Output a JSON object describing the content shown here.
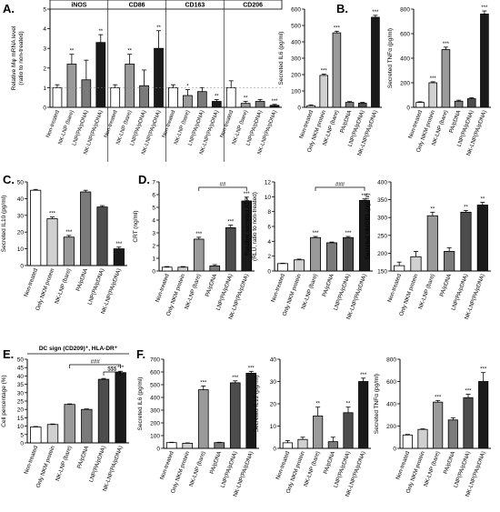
{
  "panel_letters": [
    "A.",
    "B.",
    "C.",
    "D.",
    "E.",
    "F."
  ],
  "palette": {
    "white": "#ffffff",
    "light": "#d0d0d0",
    "mid": "#9a9a9a",
    "gray": "#7a7a7a",
    "dark": "#4d4d4d",
    "black": "#1a1a1a"
  },
  "chart_data": [
    {
      "id": "A",
      "type": "bar",
      "ylabel": "Relative Mφ mRNA level\n(ratio to non-treated)",
      "ylim": [
        0,
        5
      ],
      "yticks": [
        0,
        1,
        2,
        3,
        4,
        5
      ],
      "groups": [
        "iNOS",
        "CD86",
        "CD163",
        "CD206"
      ],
      "categories": [
        "Non-treated",
        "NK-LNP (bare)",
        "LNP(PA/pDNA)",
        "NK-LNP(PA/pDNA)"
      ],
      "colors": [
        "white",
        "mid",
        "gray",
        "black"
      ],
      "values": [
        [
          1.0,
          2.2,
          1.4,
          3.3
        ],
        [
          1.0,
          2.2,
          1.1,
          3.0
        ],
        [
          1.0,
          0.6,
          0.8,
          0.3
        ],
        [
          1.0,
          0.2,
          0.3,
          0.1
        ]
      ],
      "errors": [
        [
          0.15,
          0.5,
          1.0,
          0.4
        ],
        [
          0.15,
          0.5,
          0.8,
          0.9
        ],
        [
          0.15,
          0.3,
          0.2,
          0.1
        ],
        [
          0.35,
          0.1,
          0.1,
          0.05
        ]
      ],
      "sig": [
        [
          "",
          "**",
          "",
          "**"
        ],
        [
          "",
          "**",
          "",
          "**"
        ],
        [
          "",
          "*",
          "",
          "**"
        ],
        [
          "",
          "**",
          "",
          "***"
        ]
      ]
    },
    {
      "id": "B1",
      "type": "bar",
      "ylabel": "Secreted IL6 (pg/ml)",
      "ylim": [
        0,
        600
      ],
      "yticks": [
        0,
        100,
        200,
        300,
        400,
        500,
        600
      ],
      "categories": [
        "Non-treated",
        "Only NKM protein",
        "NK-LNP (bare)",
        "PA/pDNA",
        "LNP(PA/pDNA)",
        "NK-LNP(PA/pDNA)"
      ],
      "colors": [
        "white",
        "light",
        "mid",
        "gray",
        "dark",
        "black"
      ],
      "values": [
        10,
        195,
        455,
        30,
        25,
        550
      ],
      "errors": [
        5,
        8,
        10,
        5,
        5,
        12
      ],
      "sig": [
        "",
        "***",
        "***",
        "",
        "",
        "***"
      ]
    },
    {
      "id": "B2",
      "type": "bar",
      "ylabel": "Secreted TNFα (pg/ml)",
      "ylim": [
        0,
        800
      ],
      "yticks": [
        0,
        200,
        400,
        600,
        800
      ],
      "categories": [
        "Non-treated",
        "Only NKM protein",
        "NK-LNP (bare)",
        "PA/pDNA",
        "LNP(PA/pDNA)",
        "NK-LNP(PA/pDNA)"
      ],
      "colors": [
        "white",
        "light",
        "mid",
        "gray",
        "dark",
        "black"
      ],
      "values": [
        40,
        200,
        470,
        50,
        70,
        760
      ],
      "errors": [
        5,
        8,
        20,
        8,
        8,
        25
      ],
      "sig": [
        "",
        "***",
        "***",
        "",
        "",
        "***"
      ]
    },
    {
      "id": "C",
      "type": "bar",
      "ylabel": "Secreted IL10 (pg/ml)",
      "ylim": [
        0,
        50
      ],
      "yticks": [
        0,
        10,
        20,
        30,
        40,
        50
      ],
      "categories": [
        "Non-treated",
        "Only NKM protein",
        "NK-LNP (bare)",
        "PA/pDNA",
        "LNP(PA/pDNA)",
        "NK-LNP(PA/pDNA)"
      ],
      "colors": [
        "white",
        "light",
        "mid",
        "gray",
        "dark",
        "black"
      ],
      "values": [
        45,
        28,
        17,
        44,
        35,
        10
      ],
      "errors": [
        0.5,
        1.0,
        1.0,
        1.0,
        0.8,
        1.0
      ],
      "sig": [
        "",
        "***",
        "***",
        "",
        "",
        "***"
      ]
    },
    {
      "id": "D1",
      "type": "bar",
      "ylabel": "CRT (ng/ml)",
      "ylim": [
        0,
        7
      ],
      "yticks": [
        0,
        1,
        2,
        3,
        4,
        5,
        6,
        7
      ],
      "categories": [
        "Non-treated",
        "Only NKM protein",
        "NK-LNP (bare)",
        "PA/pDNA",
        "LNP(PA/pDNA)",
        "NK-LNP(PA/pDNA)"
      ],
      "colors": [
        "white",
        "light",
        "mid",
        "gray",
        "dark",
        "black"
      ],
      "values": [
        0.3,
        0.3,
        2.5,
        0.4,
        3.4,
        5.5
      ],
      "errors": [
        0.05,
        0.05,
        0.15,
        0.1,
        0.2,
        0.3
      ],
      "sig": [
        "",
        "",
        "***",
        "",
        "***",
        "***"
      ],
      "bracket": {
        "from": 2,
        "to": 5,
        "label": "##"
      }
    },
    {
      "id": "D2",
      "type": "bar",
      "ylabel": "Relative secreted ATP\n(RLU, ratio to non-treated)",
      "ylim": [
        0,
        12
      ],
      "yticks": [
        0,
        2,
        4,
        6,
        8,
        10,
        12
      ],
      "categories": [
        "Non-treated",
        "Only NKM protein",
        "NK-LNP (bare)",
        "PA/pDNA",
        "LNP(PA/pDNA)",
        "NK-LNP(PA/pDNA)"
      ],
      "colors": [
        "white",
        "light",
        "mid",
        "gray",
        "dark",
        "black"
      ],
      "values": [
        1.0,
        1.5,
        4.5,
        3.8,
        4.5,
        9.5
      ],
      "errors": [
        0.05,
        0.1,
        0.15,
        0.1,
        0.15,
        0.2
      ],
      "sig": [
        "",
        "",
        "***",
        "",
        "***",
        "***"
      ],
      "bracket": {
        "from": 2,
        "to": 5,
        "label": "###"
      }
    },
    {
      "id": "D3",
      "type": "bar",
      "ylabel": "Secreted HMGB1 (pg/ml)",
      "ylim": [
        150,
        400
      ],
      "yticks": [
        150,
        200,
        250,
        300,
        350,
        400
      ],
      "categories": [
        "Non-treated",
        "Only NKM protein",
        "NK-LNP (bare)",
        "PA/pDNA",
        "LNP(PA/pDNA)",
        "NK-LNP(PA/pDNA)"
      ],
      "colors": [
        "white",
        "light",
        "mid",
        "gray",
        "dark",
        "black"
      ],
      "values": [
        165,
        190,
        305,
        205,
        315,
        335
      ],
      "errors": [
        10,
        15,
        10,
        10,
        5,
        8
      ],
      "sig": [
        "",
        "",
        "**",
        "",
        "**",
        "**"
      ]
    },
    {
      "id": "E",
      "type": "bar",
      "title": "DC sign (CD209)⁺, HLA-DR⁺",
      "ylabel": "Cell percentage (%)",
      "ylim": [
        0,
        50
      ],
      "yticks": [
        0,
        5,
        10,
        15,
        20,
        25,
        30,
        35,
        40,
        45,
        50
      ],
      "categories": [
        "Non-treated",
        "Only NKM protein",
        "NK-LNP (bare)",
        "PA/pDNA",
        "LNP(PA/pDNA)",
        "NK-LNP(PA/pDNA)"
      ],
      "colors": [
        "white",
        "light",
        "mid",
        "gray",
        "dark",
        "black"
      ],
      "values": [
        9.5,
        11,
        23,
        20,
        38,
        42
      ],
      "errors": [
        0.3,
        0.3,
        0.3,
        0.3,
        0.5,
        0.8
      ],
      "sig": [
        "",
        "",
        "",
        "",
        "",
        "***"
      ],
      "brackets": [
        {
          "from": 2,
          "to": 5,
          "label": "###"
        },
        {
          "from": 4,
          "to": 5,
          "label": "$$$"
        }
      ]
    },
    {
      "id": "F1",
      "type": "bar",
      "ylabel": "Secreted IL6 (pg/ml)",
      "ylim": [
        0,
        700
      ],
      "yticks": [
        0,
        100,
        200,
        300,
        400,
        500,
        600,
        700
      ],
      "categories": [
        "Non-treated",
        "Only NKM protein",
        "NK-LNP (bare)",
        "PA/pDNA",
        "LNP(PA/pDNA)",
        "NK-LNP(PA/pDNA)"
      ],
      "colors": [
        "white",
        "light",
        "mid",
        "gray",
        "dark",
        "black"
      ],
      "values": [
        45,
        40,
        460,
        45,
        515,
        590
      ],
      "errors": [
        3,
        3,
        30,
        3,
        15,
        15
      ],
      "sig": [
        "",
        "",
        "***",
        "",
        "***",
        "***"
      ]
    },
    {
      "id": "F2",
      "type": "bar",
      "ylabel": "Secreted IL12 (pg/ml)",
      "ylim": [
        0,
        40
      ],
      "yticks": [
        0,
        10,
        20,
        30,
        40
      ],
      "categories": [
        "Non-treated",
        "Only NKM protein",
        "NK-LNP (bare)",
        "PA/pDNA",
        "LNP(PA/pDNA)",
        "NK-LNP(PA/pDNA)"
      ],
      "colors": [
        "white",
        "light",
        "mid",
        "gray",
        "dark",
        "black"
      ],
      "values": [
        2.5,
        4,
        14.5,
        3,
        16,
        30
      ],
      "errors": [
        1,
        1,
        4,
        2,
        2.5,
        1.5
      ],
      "sig": [
        "",
        "",
        "**",
        "",
        "**",
        "***"
      ]
    },
    {
      "id": "F3",
      "type": "bar",
      "ylabel": "Secreted TNFα (pg/ml)",
      "ylim": [
        0,
        800
      ],
      "yticks": [
        0,
        200,
        400,
        600,
        800
      ],
      "categories": [
        "Non-treated",
        "Only NKM protein",
        "NK-LNP (bare)",
        "PA/pDNA",
        "LNP(PA/pDNA)",
        "NK-LNP(PA/pDNA)"
      ],
      "colors": [
        "white",
        "light",
        "mid",
        "gray",
        "dark",
        "black"
      ],
      "values": [
        120,
        170,
        415,
        255,
        455,
        600
      ],
      "errors": [
        5,
        5,
        15,
        20,
        30,
        80
      ],
      "sig": [
        "",
        "",
        "***",
        "",
        "***",
        "***"
      ]
    }
  ]
}
